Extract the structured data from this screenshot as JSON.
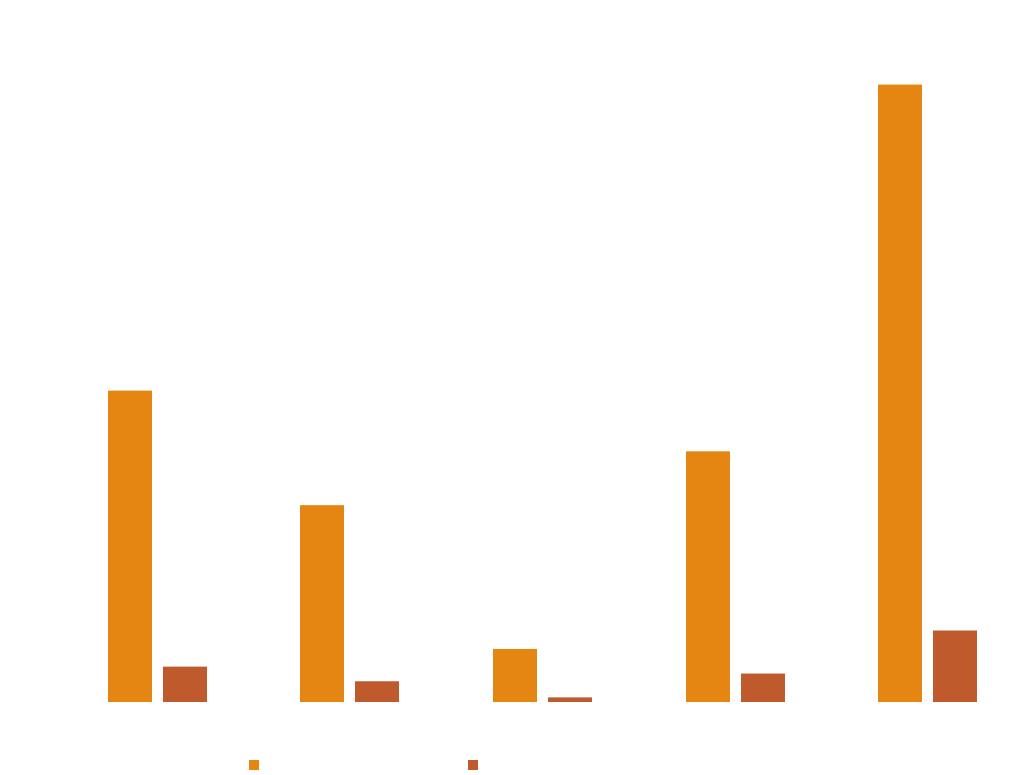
{
  "chart_data": {
    "type": "bar",
    "title": "",
    "xlabel": "",
    "ylabel": "",
    "categories": [
      "",
      "",
      "",
      "",
      ""
    ],
    "series": [
      {
        "color": "#E58512",
        "values": [
          40.5,
          25.6,
          6.9,
          32.6,
          80.3
        ]
      },
      {
        "color": "#BF5A2D",
        "values": [
          4.6,
          2.7,
          0.6,
          3.7,
          9.3
        ]
      }
    ],
    "ylim": [
      0,
      90
    ],
    "grid": false,
    "legend": {
      "position": "bottom"
    }
  }
}
